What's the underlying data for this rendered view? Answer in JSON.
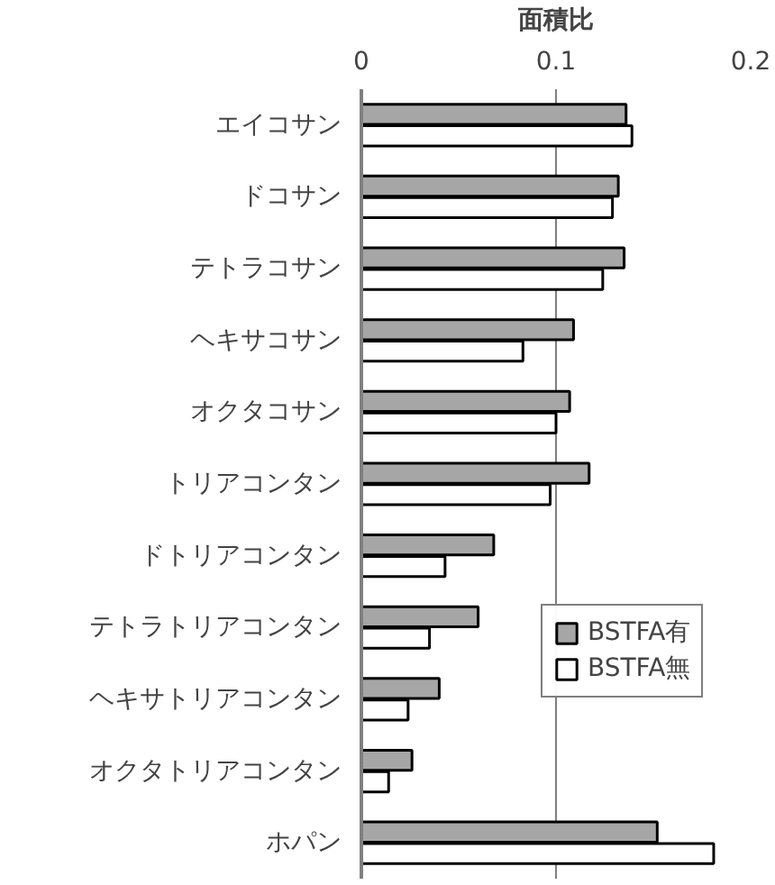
{
  "chart_data": {
    "type": "bar",
    "orientation": "horizontal",
    "xlabel": "面積比",
    "categories": [
      "エイコサン",
      "ドコサン",
      "テトラコサン",
      "ヘキサコサン",
      "オクタコサン",
      "トリアコンタン",
      "ドトリアコンタン",
      "テトラトリアコンタン",
      "ヘキサトリアコンタン",
      "オクタトリアコンタン",
      "ホパン"
    ],
    "series": [
      {
        "name": "BSTFA有",
        "color": "#a6a6a6",
        "values": [
          0.136,
          0.132,
          0.135,
          0.109,
          0.107,
          0.117,
          0.068,
          0.06,
          0.04,
          0.026,
          0.152
        ]
      },
      {
        "name": "BSTFA無",
        "color": "#ffffff",
        "values": [
          0.139,
          0.129,
          0.124,
          0.083,
          0.1,
          0.097,
          0.043,
          0.035,
          0.024,
          0.014,
          0.181
        ]
      }
    ],
    "xlim": [
      0,
      0.2
    ],
    "xticks": [
      0,
      0.1,
      0.2
    ],
    "grid": "x",
    "legend": "right"
  }
}
